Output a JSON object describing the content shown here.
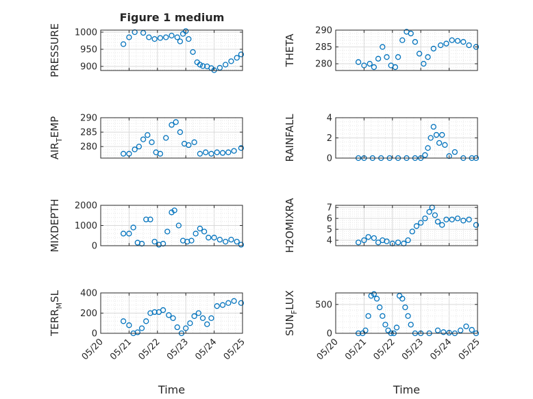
{
  "figure": {
    "title": "Figure 1 medium",
    "x_axis_label": "Time",
    "x_tick_labels": [
      "05/20",
      "05/21",
      "05/22",
      "05/23",
      "05/24",
      "05/25"
    ],
    "marker_color": "#0072BD",
    "marker_style": "open-circle",
    "grid": "major-and-minor"
  },
  "chart_data": [
    {
      "type": "scatter",
      "id": "pressure",
      "ylabel": "PRESSURE",
      "x_unit": "days since 05/20",
      "xlim": [
        0,
        5
      ],
      "ylim": [
        888,
        1006
      ],
      "yticks": [
        900,
        950,
        1000
      ],
      "ytick_labels": [
        "900",
        "950",
        "1000"
      ],
      "x": [
        0.8,
        1.0,
        1.2,
        1.5,
        1.7,
        1.9,
        2.1,
        2.3,
        2.5,
        2.7,
        2.8,
        2.9,
        3.0,
        3.1,
        3.25,
        3.4,
        3.5,
        3.6,
        3.75,
        3.9,
        4.0,
        4.2,
        4.4,
        4.6,
        4.8,
        4.95
      ],
      "y": [
        965,
        985,
        1000,
        998,
        985,
        980,
        983,
        985,
        990,
        985,
        973,
        995,
        1003,
        980,
        942,
        912,
        905,
        901,
        900,
        895,
        889,
        896,
        905,
        915,
        925,
        935
      ]
    },
    {
      "type": "scatter",
      "id": "theta",
      "ylabel": "THETA",
      "x_unit": "days since 05/20",
      "xlim": [
        0,
        5
      ],
      "ylim": [
        278,
        290
      ],
      "yticks": [
        280,
        285,
        290
      ],
      "ytick_labels": [
        "280",
        "285",
        "290"
      ],
      "x": [
        0.8,
        1.0,
        1.2,
        1.35,
        1.5,
        1.65,
        1.8,
        1.95,
        2.1,
        2.2,
        2.35,
        2.5,
        2.65,
        2.8,
        2.95,
        3.1,
        3.25,
        3.45,
        3.7,
        3.9,
        4.1,
        4.3,
        4.5,
        4.7,
        4.95
      ],
      "y": [
        280.5,
        279.5,
        280.0,
        279.0,
        281.5,
        285.0,
        282.0,
        279.5,
        279.0,
        282.0,
        287.0,
        289.5,
        289.0,
        286.5,
        283.0,
        280.0,
        282.0,
        284.5,
        285.5,
        286.0,
        287.0,
        286.8,
        286.5,
        285.5,
        285.0
      ]
    },
    {
      "type": "scatter",
      "id": "air_temp",
      "ylabel": "AIR_TEMP",
      "x_unit": "days since 05/20",
      "xlim": [
        0,
        5
      ],
      "ylim": [
        276,
        290
      ],
      "yticks": [
        280,
        285,
        290
      ],
      "ytick_labels": [
        "280",
        "285",
        "290"
      ],
      "x": [
        0.8,
        1.0,
        1.2,
        1.35,
        1.5,
        1.65,
        1.8,
        1.95,
        2.1,
        2.3,
        2.5,
        2.65,
        2.8,
        2.95,
        3.1,
        3.3,
        3.5,
        3.7,
        3.9,
        4.1,
        4.3,
        4.5,
        4.7,
        4.95
      ],
      "y": [
        277.5,
        277.5,
        279.0,
        280.0,
        282.5,
        284.0,
        281.5,
        278.0,
        277.5,
        283.0,
        287.5,
        288.5,
        285.0,
        281.0,
        280.5,
        281.5,
        277.5,
        278.0,
        277.5,
        278.0,
        277.8,
        278.0,
        278.5,
        279.5
      ]
    },
    {
      "type": "scatter",
      "id": "rainfall",
      "ylabel": "RAINFALL",
      "x_unit": "days since 05/20",
      "xlim": [
        0,
        5
      ],
      "ylim": [
        0,
        4
      ],
      "yticks": [
        0,
        2,
        4
      ],
      "ytick_labels": [
        "0",
        "2",
        "4"
      ],
      "x": [
        0.8,
        1.0,
        1.3,
        1.6,
        1.9,
        2.2,
        2.5,
        2.8,
        3.0,
        3.15,
        3.25,
        3.35,
        3.45,
        3.55,
        3.65,
        3.75,
        3.85,
        4.0,
        4.2,
        4.5,
        4.8,
        4.95
      ],
      "y": [
        0,
        0,
        0,
        0,
        0,
        0,
        0,
        0,
        0,
        0.3,
        1.0,
        2.0,
        3.1,
        2.3,
        1.5,
        2.3,
        1.3,
        0.2,
        0.6,
        0,
        0,
        0
      ]
    },
    {
      "type": "scatter",
      "id": "mixdepth",
      "ylabel": "MIXDEPTH",
      "x_unit": "days since 05/20",
      "xlim": [
        0,
        5
      ],
      "ylim": [
        0,
        2000
      ],
      "yticks": [
        0,
        1000,
        2000
      ],
      "ytick_labels": [
        "0",
        "1000",
        "2000"
      ],
      "x": [
        0.8,
        1.0,
        1.15,
        1.3,
        1.45,
        1.6,
        1.75,
        1.9,
        2.05,
        2.2,
        2.35,
        2.5,
        2.6,
        2.75,
        2.9,
        3.05,
        3.2,
        3.35,
        3.5,
        3.65,
        3.8,
        4.0,
        4.2,
        4.4,
        4.6,
        4.8,
        4.95
      ],
      "y": [
        600,
        600,
        900,
        150,
        100,
        1300,
        1300,
        200,
        50,
        100,
        700,
        1650,
        1750,
        1000,
        250,
        200,
        250,
        600,
        850,
        700,
        400,
        400,
        300,
        200,
        300,
        200,
        50
      ]
    },
    {
      "type": "scatter",
      "id": "h2omixra",
      "ylabel": "H2OMIXRA",
      "x_unit": "days since 05/20",
      "xlim": [
        0,
        5
      ],
      "ylim": [
        3.5,
        7.2
      ],
      "yticks": [
        4,
        5,
        6,
        7
      ],
      "ytick_labels": [
        "4",
        "5",
        "6",
        "7"
      ],
      "x": [
        0.8,
        1.0,
        1.15,
        1.35,
        1.5,
        1.65,
        1.8,
        2.0,
        2.2,
        2.4,
        2.55,
        2.7,
        2.85,
        3.0,
        3.15,
        3.3,
        3.4,
        3.5,
        3.6,
        3.75,
        3.9,
        4.1,
        4.3,
        4.5,
        4.7,
        4.95
      ],
      "y": [
        3.8,
        4.0,
        4.3,
        4.2,
        3.8,
        4.0,
        3.9,
        3.7,
        3.8,
        3.7,
        4.0,
        4.8,
        5.3,
        5.6,
        6.0,
        6.6,
        7.0,
        6.3,
        5.7,
        5.4,
        5.9,
        5.9,
        6.0,
        5.8,
        5.9,
        5.4
      ]
    },
    {
      "type": "scatter",
      "id": "terr_msl",
      "ylabel": "TERR_MSL",
      "x_unit": "days since 05/20",
      "xlim": [
        0,
        5
      ],
      "ylim": [
        0,
        400
      ],
      "yticks": [
        0,
        200,
        400
      ],
      "ytick_labels": [
        "0",
        "200",
        "400"
      ],
      "x": [
        0.8,
        1.0,
        1.15,
        1.3,
        1.45,
        1.6,
        1.75,
        1.9,
        2.05,
        2.2,
        2.4,
        2.55,
        2.7,
        2.85,
        3.0,
        3.15,
        3.3,
        3.45,
        3.6,
        3.75,
        3.9,
        4.1,
        4.3,
        4.5,
        4.7,
        4.95
      ],
      "y": [
        120,
        80,
        0,
        10,
        50,
        120,
        200,
        210,
        210,
        230,
        180,
        150,
        60,
        0,
        50,
        100,
        170,
        200,
        150,
        90,
        150,
        270,
        280,
        300,
        320,
        300
      ]
    },
    {
      "type": "scatter",
      "id": "sun_flux",
      "ylabel": "SUN_FLUX",
      "x_unit": "days since 05/20",
      "xlim": [
        0,
        5
      ],
      "ylim": [
        0,
        700
      ],
      "yticks": [
        0,
        500
      ],
      "ytick_labels": [
        "0",
        "500"
      ],
      "x": [
        0.8,
        0.95,
        1.05,
        1.15,
        1.25,
        1.35,
        1.45,
        1.55,
        1.65,
        1.75,
        1.85,
        1.95,
        2.05,
        2.15,
        2.25,
        2.35,
        2.45,
        2.55,
        2.65,
        2.8,
        3.0,
        3.3,
        3.6,
        3.8,
        4.0,
        4.2,
        4.4,
        4.6,
        4.8,
        4.95
      ],
      "y": [
        0,
        0,
        50,
        300,
        650,
        680,
        600,
        450,
        300,
        150,
        50,
        0,
        0,
        100,
        650,
        600,
        450,
        300,
        150,
        0,
        0,
        0,
        50,
        20,
        10,
        0,
        50,
        120,
        60,
        0
      ]
    }
  ]
}
